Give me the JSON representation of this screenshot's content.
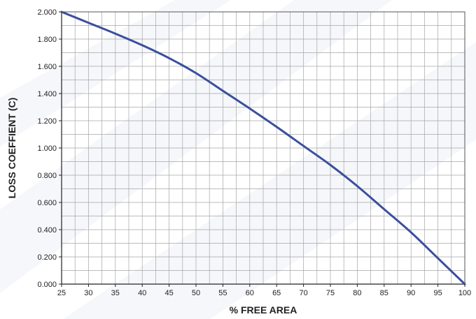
{
  "chart_data": {
    "type": "line",
    "xlabel": "% FREE AREA",
    "ylabel": "LOSS COEFFIENT (C)",
    "xlim": [
      25,
      100
    ],
    "ylim": [
      0,
      2.0
    ],
    "x_ticks": [
      25,
      30,
      35,
      40,
      45,
      50,
      55,
      60,
      65,
      70,
      75,
      80,
      85,
      90,
      95,
      100
    ],
    "x_tick_labels": [
      "25",
      "30",
      "35",
      "40",
      "45",
      "50",
      "55",
      "60",
      "65",
      "70",
      "75",
      "80",
      "85",
      "90",
      "95",
      "100"
    ],
    "y_ticks": [
      0,
      0.2,
      0.4,
      0.6,
      0.8,
      1.0,
      1.2,
      1.4,
      1.6,
      1.8,
      2.0
    ],
    "y_tick_labels": [
      "0.000",
      "0.200",
      "0.400",
      "0.600",
      "0.800",
      "1.000",
      "1.200",
      "1.400",
      "1.600",
      "1.800",
      "2.000"
    ],
    "grid": true,
    "legend": "none",
    "series": [
      {
        "color": "#3a4f9e",
        "x": [
          25,
          30,
          35,
          40,
          45,
          50,
          55,
          60,
          65,
          70,
          75,
          80,
          85,
          90,
          95,
          100
        ],
        "y": [
          2.0,
          1.92,
          1.84,
          1.755,
          1.66,
          1.55,
          1.42,
          1.29,
          1.155,
          1.015,
          0.875,
          0.72,
          0.55,
          0.38,
          0.19,
          0.0
        ]
      }
    ]
  }
}
